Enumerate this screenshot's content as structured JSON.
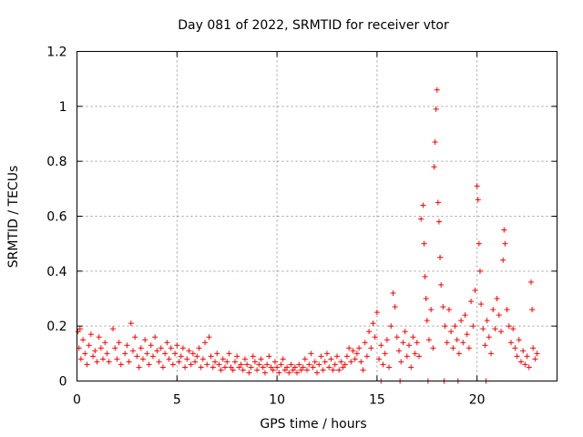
{
  "chart_data": {
    "type": "scatter",
    "title": "Day 081 of 2022, SRMTID for receiver vtor",
    "xlabel": "GPS time / hours",
    "ylabel": "SRMTID / TECUs",
    "xlim": [
      0,
      24
    ],
    "ylim": [
      0,
      1.2
    ],
    "x_ticks": [
      0,
      5,
      10,
      15,
      20
    ],
    "x_tick_labels": [
      "0",
      "5",
      "10",
      "15",
      "20"
    ],
    "y_ticks": [
      0,
      0.2,
      0.4,
      0.6,
      0.8,
      1,
      1.2
    ],
    "y_tick_labels": [
      "0",
      "0.2",
      "0.4",
      "0.6",
      "0.8",
      "1",
      "1.2"
    ],
    "grid": true,
    "marker": "+",
    "color": "#ff0000",
    "series": [
      {
        "name": "SRMTID",
        "points": [
          [
            0.05,
            0.18
          ],
          [
            0.1,
            0.12
          ],
          [
            0.15,
            0.19
          ],
          [
            0.2,
            0.08
          ],
          [
            0.3,
            0.15
          ],
          [
            0.4,
            0.1
          ],
          [
            0.5,
            0.06
          ],
          [
            0.6,
            0.13
          ],
          [
            0.7,
            0.17
          ],
          [
            0.8,
            0.09
          ],
          [
            0.9,
            0.11
          ],
          [
            1.0,
            0.07
          ],
          [
            1.1,
            0.16
          ],
          [
            1.2,
            0.12
          ],
          [
            1.3,
            0.08
          ],
          [
            1.4,
            0.14
          ],
          [
            1.5,
            0.1
          ],
          [
            1.6,
            0.07
          ],
          [
            1.8,
            0.19
          ],
          [
            1.9,
            0.12
          ],
          [
            2.0,
            0.08
          ],
          [
            2.1,
            0.14
          ],
          [
            2.2,
            0.06
          ],
          [
            2.4,
            0.1
          ],
          [
            2.5,
            0.13
          ],
          [
            2.6,
            0.07
          ],
          [
            2.7,
            0.21
          ],
          [
            2.8,
            0.11
          ],
          [
            2.9,
            0.16
          ],
          [
            3.0,
            0.09
          ],
          [
            3.1,
            0.05
          ],
          [
            3.2,
            0.12
          ],
          [
            3.3,
            0.08
          ],
          [
            3.4,
            0.15
          ],
          [
            3.5,
            0.1
          ],
          [
            3.6,
            0.06
          ],
          [
            3.7,
            0.13
          ],
          [
            3.8,
            0.09
          ],
          [
            3.9,
            0.16
          ],
          [
            4.0,
            0.11
          ],
          [
            4.1,
            0.07
          ],
          [
            4.2,
            0.12
          ],
          [
            4.3,
            0.05
          ],
          [
            4.4,
            0.1
          ],
          [
            4.5,
            0.14
          ],
          [
            4.6,
            0.08
          ],
          [
            4.7,
            0.12
          ],
          [
            4.8,
            0.06
          ],
          [
            4.9,
            0.1
          ],
          [
            5.0,
            0.13
          ],
          [
            5.1,
            0.07
          ],
          [
            5.2,
            0.09
          ],
          [
            5.3,
            0.12
          ],
          [
            5.4,
            0.05
          ],
          [
            5.5,
            0.08
          ],
          [
            5.6,
            0.11
          ],
          [
            5.7,
            0.06
          ],
          [
            5.8,
            0.1
          ],
          [
            5.9,
            0.07
          ],
          [
            6.0,
            0.09
          ],
          [
            6.1,
            0.12
          ],
          [
            6.2,
            0.05
          ],
          [
            6.3,
            0.08
          ],
          [
            6.4,
            0.14
          ],
          [
            6.5,
            0.06
          ],
          [
            6.6,
            0.16
          ],
          [
            6.7,
            0.09
          ],
          [
            6.8,
            0.05
          ],
          [
            6.9,
            0.07
          ],
          [
            7.0,
            0.1
          ],
          [
            7.1,
            0.06
          ],
          [
            7.2,
            0.04
          ],
          [
            7.3,
            0.08
          ],
          [
            7.4,
            0.05
          ],
          [
            7.5,
            0.07
          ],
          [
            7.6,
            0.1
          ],
          [
            7.7,
            0.05
          ],
          [
            7.8,
            0.04
          ],
          [
            7.9,
            0.07
          ],
          [
            8.0,
            0.09
          ],
          [
            8.1,
            0.05
          ],
          [
            8.2,
            0.06
          ],
          [
            8.3,
            0.04
          ],
          [
            8.4,
            0.08
          ],
          [
            8.5,
            0.06
          ],
          [
            8.6,
            0.03
          ],
          [
            8.7,
            0.05
          ],
          [
            8.8,
            0.09
          ],
          [
            8.9,
            0.07
          ],
          [
            9.0,
            0.04
          ],
          [
            9.1,
            0.06
          ],
          [
            9.2,
            0.08
          ],
          [
            9.3,
            0.05
          ],
          [
            9.4,
            0.03
          ],
          [
            9.5,
            0.06
          ],
          [
            9.6,
            0.09
          ],
          [
            9.7,
            0.05
          ],
          [
            9.8,
            0.04
          ],
          [
            9.9,
            0.07
          ],
          [
            10.0,
            0.05
          ],
          [
            10.1,
            0.03
          ],
          [
            10.2,
            0.06
          ],
          [
            10.3,
            0.08
          ],
          [
            10.4,
            0.04
          ],
          [
            10.5,
            0.05
          ],
          [
            10.6,
            0.03
          ],
          [
            10.7,
            0.06
          ],
          [
            10.8,
            0.04
          ],
          [
            10.9,
            0.05
          ],
          [
            11.0,
            0.03
          ],
          [
            11.1,
            0.06
          ],
          [
            11.2,
            0.04
          ],
          [
            11.3,
            0.05
          ],
          [
            11.4,
            0.08
          ],
          [
            11.5,
            0.04
          ],
          [
            11.6,
            0.06
          ],
          [
            11.7,
            0.1
          ],
          [
            11.8,
            0.05
          ],
          [
            11.9,
            0.07
          ],
          [
            12.0,
            0.03
          ],
          [
            12.1,
            0.06
          ],
          [
            12.2,
            0.09
          ],
          [
            12.3,
            0.04
          ],
          [
            12.4,
            0.07
          ],
          [
            12.5,
            0.1
          ],
          [
            12.6,
            0.05
          ],
          [
            12.7,
            0.08
          ],
          [
            12.8,
            0.04
          ],
          [
            12.9,
            0.06
          ],
          [
            13.0,
            0.09
          ],
          [
            13.1,
            0.04
          ],
          [
            13.2,
            0.07
          ],
          [
            13.3,
            0.05
          ],
          [
            13.4,
            0.06
          ],
          [
            13.5,
            0.09
          ],
          [
            13.6,
            0.12
          ],
          [
            13.7,
            0.07
          ],
          [
            13.8,
            0.11
          ],
          [
            13.9,
            0.08
          ],
          [
            14.0,
            0.1
          ],
          [
            14.1,
            0.12
          ],
          [
            14.2,
            0.07
          ],
          [
            14.3,
            0.04
          ],
          [
            14.4,
            0.14
          ],
          [
            14.5,
            0.09
          ],
          [
            14.6,
            0.18
          ],
          [
            14.7,
            0.12
          ],
          [
            14.8,
            0.21
          ],
          [
            14.9,
            0.16
          ],
          [
            15.0,
            0.25
          ],
          [
            15.1,
            0.08
          ],
          [
            15.2,
            0.13
          ],
          [
            15.3,
            0.06
          ],
          [
            15.4,
            0.1
          ],
          [
            15.5,
            0.15
          ],
          [
            15.6,
            0.05
          ],
          [
            15.7,
            0.2
          ],
          [
            15.8,
            0.32
          ],
          [
            15.9,
            0.27
          ],
          [
            16.0,
            0.16
          ],
          [
            16.1,
            0.11
          ],
          [
            16.2,
            0.07
          ],
          [
            16.3,
            0.14
          ],
          [
            16.4,
            0.18
          ],
          [
            16.5,
            0.09
          ],
          [
            16.6,
            0.13
          ],
          [
            16.7,
            0.05
          ],
          [
            16.8,
            0.16
          ],
          [
            16.9,
            0.1
          ],
          [
            17.0,
            0.14
          ],
          [
            17.1,
            0.09
          ],
          [
            17.2,
            0.59
          ],
          [
            17.3,
            0.64
          ],
          [
            17.35,
            0.5
          ],
          [
            17.4,
            0.38
          ],
          [
            17.45,
            0.3
          ],
          [
            17.5,
            0.22
          ],
          [
            17.6,
            0.15
          ],
          [
            17.7,
            0.26
          ],
          [
            17.8,
            0.12
          ],
          [
            17.85,
            0.78
          ],
          [
            17.9,
            0.87
          ],
          [
            17.95,
            0.99
          ],
          [
            18.0,
            1.06
          ],
          [
            18.05,
            0.65
          ],
          [
            18.1,
            0.58
          ],
          [
            18.15,
            0.45
          ],
          [
            18.2,
            0.35
          ],
          [
            18.3,
            0.27
          ],
          [
            18.4,
            0.2
          ],
          [
            18.5,
            0.14
          ],
          [
            18.6,
            0.26
          ],
          [
            18.7,
            0.18
          ],
          [
            18.8,
            0.12
          ],
          [
            18.9,
            0.2
          ],
          [
            19.0,
            0.15
          ],
          [
            19.1,
            0.1
          ],
          [
            19.2,
            0.22
          ],
          [
            19.3,
            0.14
          ],
          [
            19.4,
            0.24
          ],
          [
            19.5,
            0.17
          ],
          [
            19.6,
            0.12
          ],
          [
            19.7,
            0.29
          ],
          [
            19.8,
            0.2
          ],
          [
            19.9,
            0.33
          ],
          [
            20.0,
            0.71
          ],
          [
            20.05,
            0.66
          ],
          [
            20.1,
            0.5
          ],
          [
            20.15,
            0.4
          ],
          [
            20.2,
            0.28
          ],
          [
            20.3,
            0.19
          ],
          [
            20.4,
            0.13
          ],
          [
            20.5,
            0.22
          ],
          [
            20.6,
            0.16
          ],
          [
            20.7,
            0.1
          ],
          [
            20.8,
            0.26
          ],
          [
            20.9,
            0.19
          ],
          [
            21.0,
            0.3
          ],
          [
            21.1,
            0.24
          ],
          [
            21.2,
            0.18
          ],
          [
            21.3,
            0.44
          ],
          [
            21.35,
            0.55
          ],
          [
            21.4,
            0.5
          ],
          [
            21.5,
            0.26
          ],
          [
            21.6,
            0.2
          ],
          [
            21.7,
            0.14
          ],
          [
            21.8,
            0.19
          ],
          [
            21.9,
            0.12
          ],
          [
            22.0,
            0.09
          ],
          [
            22.1,
            0.15
          ],
          [
            22.2,
            0.07
          ],
          [
            22.3,
            0.11
          ],
          [
            22.4,
            0.06
          ],
          [
            22.5,
            0.09
          ],
          [
            22.6,
            0.05
          ],
          [
            22.7,
            0.36
          ],
          [
            22.75,
            0.26
          ],
          [
            22.8,
            0.12
          ],
          [
            22.9,
            0.08
          ],
          [
            23.0,
            0.1
          ],
          [
            17.55,
            0.0
          ],
          [
            18.35,
            0.0
          ],
          [
            16.15,
            0.0
          ],
          [
            15.2,
            0.0
          ],
          [
            19.05,
            0.0
          ],
          [
            20.45,
            0.0
          ]
        ]
      }
    ]
  }
}
